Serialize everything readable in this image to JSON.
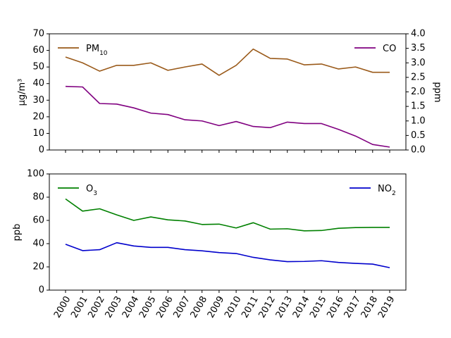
{
  "chart_data": [
    {
      "type": "line",
      "dual_axis": true,
      "categories": [
        "2000",
        "2001",
        "2002",
        "2003",
        "2004",
        "2005",
        "2006",
        "2007",
        "2008",
        "2009",
        "2010",
        "2011",
        "2012",
        "2013",
        "2014",
        "2015",
        "2016",
        "2017",
        "2018",
        "2019"
      ],
      "left_axis": {
        "label": "μg/m³",
        "ylim": [
          0,
          70
        ],
        "ticks": [
          "0",
          "10",
          "20",
          "30",
          "40",
          "50",
          "60",
          "70"
        ]
      },
      "right_axis": {
        "label": "ppm",
        "ylim": [
          0,
          4.0
        ],
        "ticks": [
          "0.0",
          "0.5",
          "1.0",
          "1.5",
          "2.0",
          "2.5",
          "3.0",
          "3.5",
          "4.0"
        ]
      },
      "series": [
        {
          "name": "PM",
          "name_sub": "10",
          "axis": "left",
          "color": "#9a5a1a",
          "legend_position": "upper-left",
          "values": [
            56.0,
            52.5,
            47.5,
            51.0,
            51.0,
            52.5,
            48.0,
            50.0,
            51.8,
            45.0,
            51.0,
            60.8,
            55.2,
            54.8,
            51.3,
            51.8,
            48.8,
            50.0,
            46.8,
            46.8
          ]
        },
        {
          "name": "CO",
          "name_sub": "",
          "axis": "right",
          "color": "#800080",
          "legend_position": "upper-right",
          "values": [
            2.19,
            2.17,
            1.6,
            1.58,
            1.45,
            1.27,
            1.22,
            1.04,
            1.0,
            0.84,
            0.98,
            0.81,
            0.77,
            0.96,
            0.91,
            0.91,
            0.71,
            0.48,
            0.19,
            0.1
          ]
        }
      ]
    },
    {
      "type": "line",
      "categories": [
        "2000",
        "2001",
        "2002",
        "2003",
        "2004",
        "2005",
        "2006",
        "2007",
        "2008",
        "2009",
        "2010",
        "2011",
        "2012",
        "2013",
        "2014",
        "2015",
        "2016",
        "2017",
        "2018",
        "2019"
      ],
      "left_axis": {
        "label": "ppb",
        "ylim": [
          0,
          100
        ],
        "ticks": [
          "0",
          "20",
          "40",
          "60",
          "80",
          "100"
        ]
      },
      "series": [
        {
          "name": "O",
          "name_sub": "3",
          "axis": "left",
          "color": "#008000",
          "legend_position": "upper-left",
          "values": [
            78.5,
            68.0,
            70.0,
            64.8,
            60.0,
            63.0,
            60.5,
            59.5,
            56.5,
            56.8,
            53.5,
            58.0,
            52.5,
            52.8,
            51.0,
            51.3,
            53.2,
            53.8,
            54.0,
            54.0
          ]
        },
        {
          "name": "NO",
          "name_sub": "2",
          "axis": "left",
          "color": "#0000cc",
          "legend_position": "upper-right",
          "values": [
            39.5,
            34.0,
            34.8,
            40.8,
            38.0,
            36.8,
            36.8,
            34.8,
            33.8,
            32.3,
            31.5,
            28.2,
            26.0,
            24.5,
            24.7,
            25.3,
            23.8,
            23.0,
            22.4,
            19.3
          ]
        }
      ]
    }
  ]
}
